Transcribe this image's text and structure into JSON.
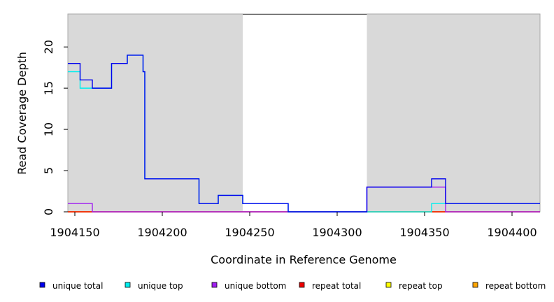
{
  "chart_data": {
    "type": "line",
    "step": true,
    "xlabel": "Coordinate in Reference Genome",
    "ylabel": "Read Coverage Depth",
    "xlim": [
      1904146,
      1904416
    ],
    "ylim": [
      0,
      24
    ],
    "x_ticks": [
      1904150,
      1904200,
      1904250,
      1904300,
      1904350,
      1904400
    ],
    "y_ticks": [
      0,
      5,
      10,
      15,
      20
    ],
    "background_color": "#d9d9d9",
    "unshaded_region": [
      1904246,
      1904317
    ],
    "legend_position": "bottom",
    "series": [
      {
        "name": "unique total",
        "color": "#0000ee",
        "x": [
          1904146,
          1904153,
          1904160,
          1904171,
          1904180,
          1904189,
          1904190,
          1904221,
          1904232,
          1904246,
          1904272,
          1904317,
          1904354,
          1904362,
          1904416
        ],
        "values": [
          18,
          16,
          15,
          18,
          19,
          17,
          4,
          1,
          2,
          1,
          0,
          3,
          4,
          1,
          1
        ]
      },
      {
        "name": "unique top",
        "color": "#00eeee",
        "x": [
          1904146,
          1904153,
          1904160,
          1904171,
          1904180,
          1904189,
          1904190,
          1904221,
          1904232,
          1904246,
          1904272,
          1904317,
          1904354,
          1904362,
          1904416
        ],
        "values": [
          17,
          15,
          15,
          18,
          19,
          17,
          4,
          1,
          2,
          1,
          0,
          0,
          1,
          1,
          1
        ]
      },
      {
        "name": "unique bottom",
        "color": "#a020f0",
        "x": [
          1904146,
          1904160,
          1904317,
          1904362,
          1904416
        ],
        "values": [
          1,
          0,
          3,
          0,
          0
        ]
      },
      {
        "name": "repeat total",
        "color": "#ee0000",
        "x": [
          1904146,
          1904416
        ],
        "values": [
          0,
          0
        ]
      },
      {
        "name": "repeat top",
        "color": "#ffff00",
        "x": [
          1904146,
          1904416
        ],
        "values": [
          0,
          0
        ]
      },
      {
        "name": "repeat bottom",
        "color": "#ffa500",
        "x": [
          1904146,
          1904416
        ],
        "values": [
          0,
          0
        ]
      }
    ]
  }
}
